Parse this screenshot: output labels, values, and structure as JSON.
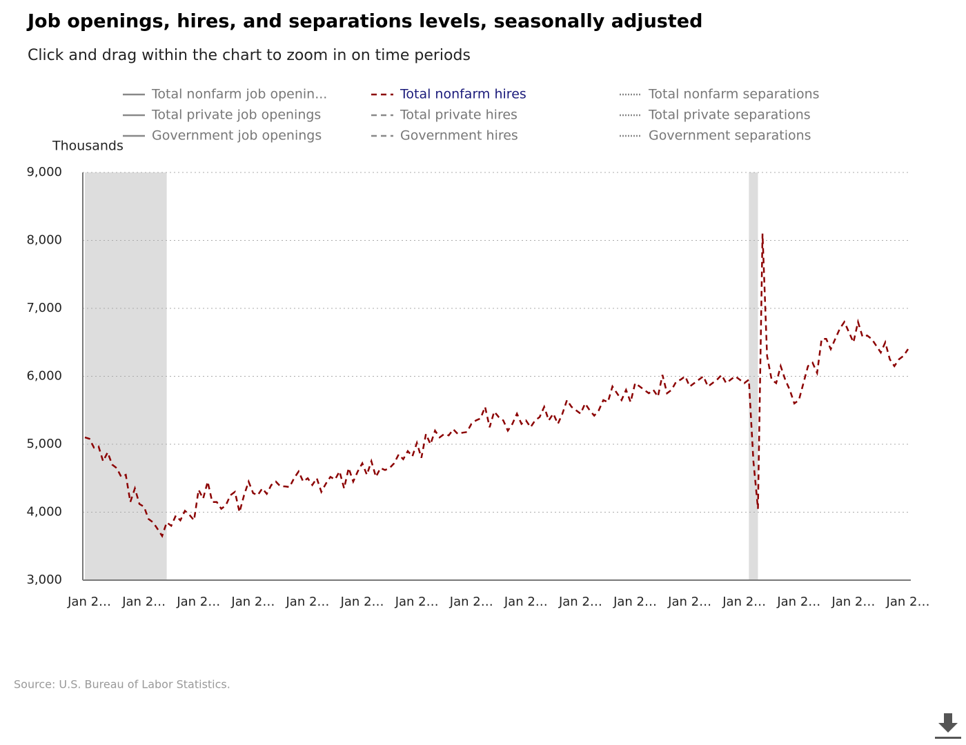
{
  "chart_data": {
    "type": "line",
    "title": "Job openings, hires, and separations levels, seasonally adjusted",
    "subtitle": "Click and drag within the chart to zoom in on time periods",
    "ylabel": "Thousands",
    "source": "Source: U.S. Bureau of Labor Statistics.",
    "ylim": [
      3000,
      9000
    ],
    "yticks": [
      {
        "value": 3000,
        "label": "3,000"
      },
      {
        "value": 4000,
        "label": "4,000"
      },
      {
        "value": 5000,
        "label": "5,000"
      },
      {
        "value": 6000,
        "label": "6,000"
      },
      {
        "value": 7000,
        "label": "7,000"
      },
      {
        "value": 8000,
        "label": "8,000"
      },
      {
        "value": 9000,
        "label": "9,000"
      }
    ],
    "grid": true,
    "categories": [
      null,
      "Jan 2…",
      null,
      null,
      null,
      null,
      null,
      null,
      null,
      null,
      null,
      null,
      null,
      "Jan 2…",
      null,
      null,
      null,
      null,
      null,
      null,
      null,
      null,
      null,
      null,
      null,
      "Jan 2…",
      null,
      null,
      null,
      null,
      null,
      null,
      null,
      null,
      null,
      null,
      null,
      "Jan 2…",
      null,
      null,
      null,
      null,
      null,
      null,
      null,
      null,
      null,
      null,
      null,
      "Jan 2…",
      null,
      null,
      null,
      null,
      null,
      null,
      null,
      null,
      null,
      null,
      null,
      "Jan 2…",
      null,
      null,
      null,
      null,
      null,
      null,
      null,
      null,
      null,
      null,
      null,
      "Jan 2…",
      null,
      null,
      null,
      null,
      null,
      null,
      null,
      null,
      null,
      null,
      null,
      "Jan 2…",
      null,
      null,
      null,
      null,
      null,
      null,
      null,
      null,
      null,
      null,
      null,
      "Jan 2…",
      null,
      null,
      null,
      null,
      null,
      null,
      null,
      null,
      null,
      null,
      null,
      "Jan 2…",
      null,
      null,
      null,
      null,
      null,
      null,
      null,
      null,
      null,
      null,
      null,
      "Jan 2…",
      null,
      null,
      null,
      null,
      null,
      null,
      null,
      null,
      null,
      null,
      null,
      "Jan 2…",
      null,
      null,
      null,
      null,
      null,
      null,
      null,
      null,
      null,
      null,
      null,
      "Jan 2…",
      null,
      null,
      null,
      null,
      null,
      null,
      null,
      null,
      null,
      null,
      null,
      "Jan 2…",
      null,
      null,
      null,
      null,
      null,
      null,
      null,
      null,
      null,
      null,
      null,
      "Jan 2…",
      null,
      null,
      null,
      null,
      null,
      null,
      null,
      null,
      null,
      null,
      null,
      "Jan 2…"
    ],
    "recession_shading": [
      {
        "from": 0,
        "to": 18
      },
      {
        "from": 146,
        "to": 148
      }
    ],
    "series": [
      {
        "name": "Total nonfarm job openin...",
        "color": "#888888",
        "dash": "solid",
        "visible": false
      },
      {
        "name": "Total private job openings",
        "color": "#888888",
        "dash": "solid",
        "visible": false
      },
      {
        "name": "Government job openings",
        "color": "#888888",
        "dash": "solid",
        "visible": false
      },
      {
        "name": "Total nonfarm hires",
        "color": "#8b0000",
        "dash": "dashed",
        "visible": true,
        "values": [
          5100,
          5080,
          4950,
          4970,
          4750,
          4880,
          4700,
          4650,
          4520,
          4550,
          4150,
          4350,
          4120,
          4080,
          3900,
          3850,
          3750,
          3650,
          3850,
          3800,
          3950,
          3880,
          4020,
          3960,
          3880,
          4330,
          4200,
          4450,
          4150,
          4150,
          4050,
          4100,
          4250,
          4300,
          4000,
          4250,
          4450,
          4280,
          4250,
          4350,
          4270,
          4400,
          4450,
          4380,
          4380,
          4370,
          4500,
          4600,
          4450,
          4500,
          4400,
          4500,
          4300,
          4420,
          4520,
          4480,
          4600,
          4350,
          4650,
          4450,
          4600,
          4720,
          4550,
          4750,
          4520,
          4650,
          4620,
          4650,
          4720,
          4850,
          4780,
          4900,
          4820,
          5020,
          4800,
          5150,
          5000,
          5200,
          5100,
          5150,
          5130,
          5220,
          5150,
          5170,
          5180,
          5300,
          5350,
          5380,
          5550,
          5250,
          5480,
          5400,
          5350,
          5200,
          5300,
          5450,
          5300,
          5350,
          5250,
          5350,
          5400,
          5550,
          5350,
          5450,
          5300,
          5450,
          5650,
          5550,
          5500,
          5450,
          5600,
          5500,
          5420,
          5500,
          5650,
          5620,
          5850,
          5750,
          5650,
          5800,
          5620,
          5900,
          5850,
          5800,
          5750,
          5800,
          5700,
          6020,
          5750,
          5800,
          5920,
          5950,
          6000,
          5850,
          5900,
          5950,
          6000,
          5850,
          5900,
          5950,
          6020,
          5900,
          5950,
          6000,
          5950,
          5900,
          5950,
          4750,
          4050,
          8100,
          6300,
          5950,
          5900,
          6150,
          5950,
          5800,
          5600,
          5650,
          5900,
          6150,
          6200,
          6050,
          6550,
          6550,
          6400,
          6550,
          6700,
          6800,
          6650,
          6500,
          6800,
          6580,
          6600,
          6550,
          6450,
          6350,
          6500,
          6250,
          6150,
          6250,
          6300,
          6400
        ]
      },
      {
        "name": "Total private hires",
        "color": "#888888",
        "dash": "dashed",
        "visible": false
      },
      {
        "name": "Government hires",
        "color": "#888888",
        "dash": "dashed",
        "visible": false
      },
      {
        "name": "Total nonfarm separations",
        "color": "#888888",
        "dash": "dotted",
        "visible": false
      },
      {
        "name": "Total private separations",
        "color": "#888888",
        "dash": "dotted",
        "visible": false
      },
      {
        "name": "Government separations",
        "color": "#888888",
        "dash": "dotted",
        "visible": false
      }
    ]
  }
}
